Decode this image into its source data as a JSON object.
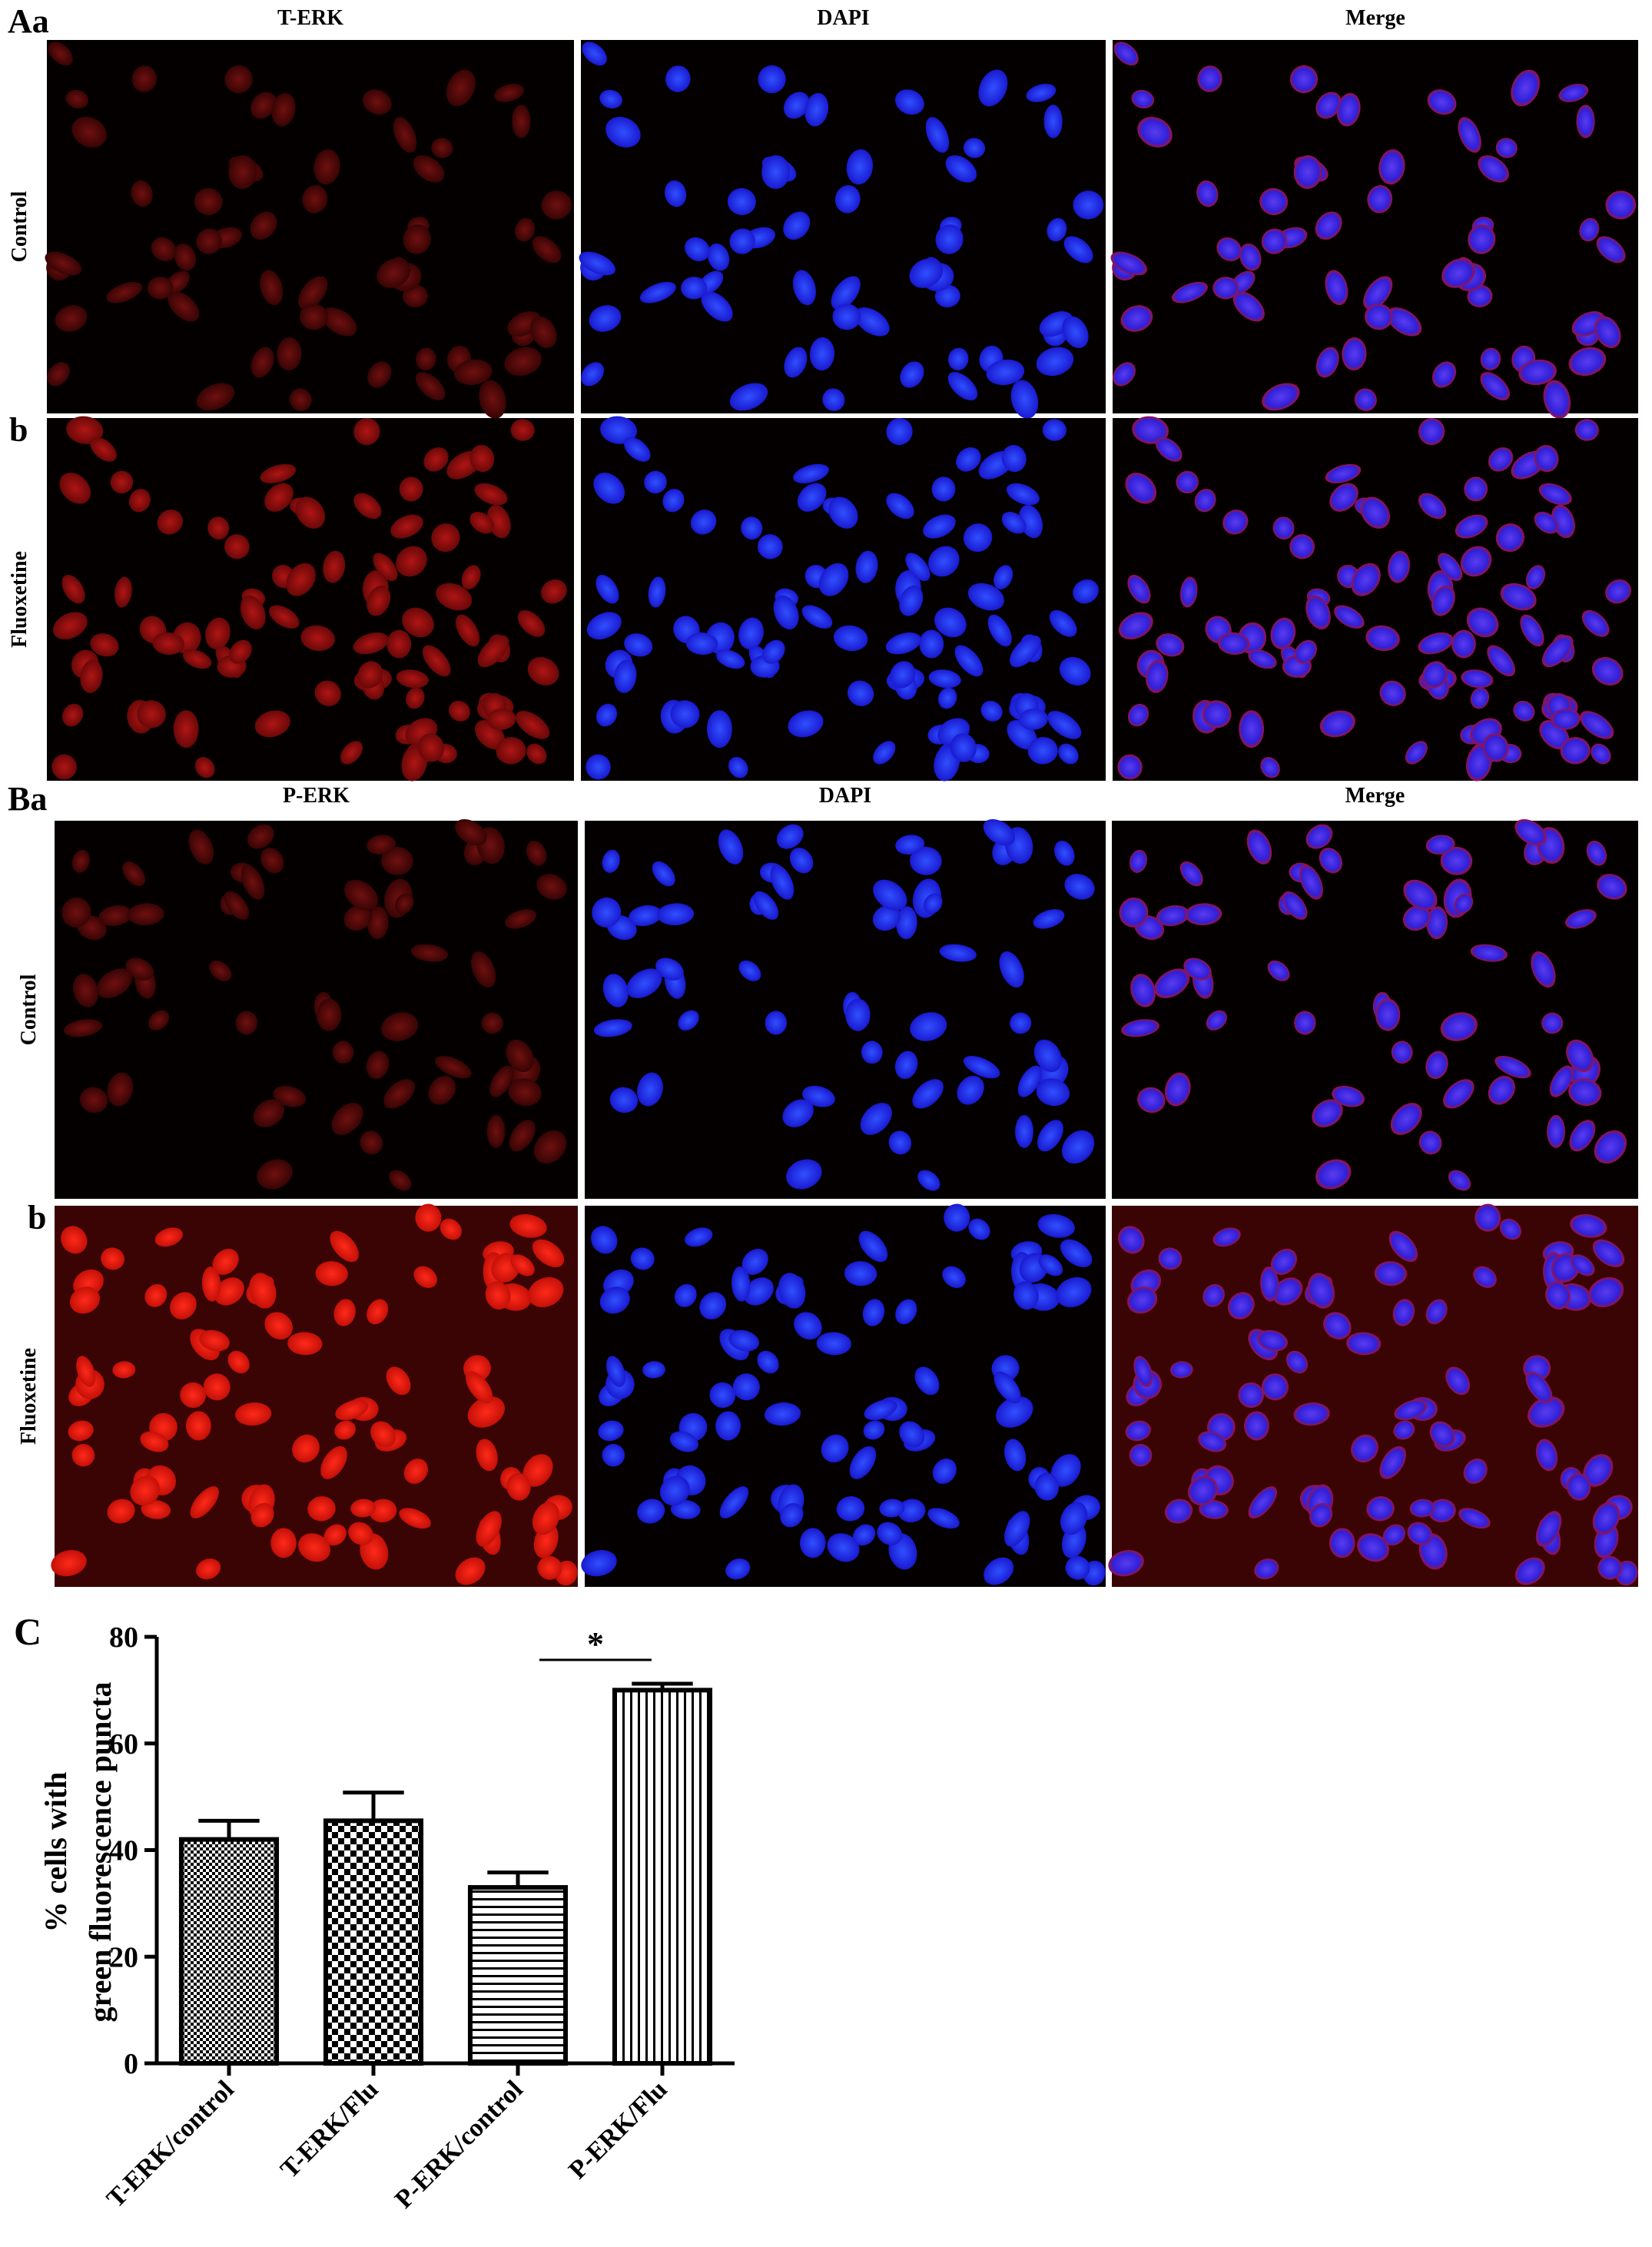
{
  "sections": [
    {
      "label": "Aa",
      "columns": [
        "T-ERK",
        "DAPI",
        "Merge"
      ],
      "rows": [
        {
          "letter": null,
          "label": "Control"
        },
        {
          "letter": "b",
          "label": "Fluoxetine"
        }
      ]
    },
    {
      "label": "Ba",
      "columns": [
        "P-ERK",
        "DAPI",
        "Merge"
      ],
      "rows": [
        {
          "letter": null,
          "label": "Control"
        },
        {
          "letter": "b",
          "label": "Fluoxetine"
        }
      ]
    }
  ],
  "chart_data": {
    "type": "bar",
    "panel_label": "C",
    "ylabel": [
      "% cells with",
      "green  fluorescence puncta"
    ],
    "categories": [
      "T-ERK/control",
      "T-ERK/Flu",
      "P-ERK/control",
      "P-ERK/Flu"
    ],
    "values": [
      42,
      45.5,
      33,
      70
    ],
    "errors": [
      3.5,
      5.3,
      2.8,
      1.2
    ],
    "patterns": [
      "fine-checker",
      "checker",
      "horizontal",
      "vertical"
    ],
    "color": "#000000",
    "ylim": [
      0,
      80
    ],
    "yticks": [
      0,
      20,
      40,
      60,
      80
    ],
    "significance": {
      "text": "*",
      "between": [
        2,
        3
      ]
    }
  }
}
